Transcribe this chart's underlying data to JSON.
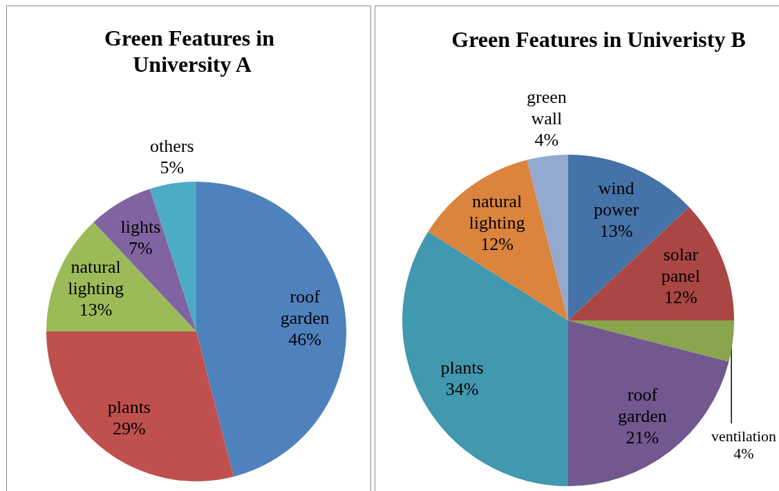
{
  "chart_data": [
    {
      "type": "pie",
      "title": "Green Features in University A",
      "categories": [
        "roof garden",
        "plants",
        "natural lighting",
        "lights",
        "others"
      ],
      "values": [
        46,
        29,
        13,
        7,
        5
      ],
      "value_labels": [
        "46%",
        "29%",
        "13%",
        "7%",
        "5%"
      ],
      "colors": [
        "#4f81bd",
        "#c0504d",
        "#9bbb59",
        "#8064a2",
        "#4bacc6"
      ]
    },
    {
      "type": "pie",
      "title": "Green Features in Univeristy B",
      "categories": [
        "wind power",
        "solar panel",
        "ventilation",
        "roof garden",
        "plants",
        "natural lighting",
        "green wall"
      ],
      "values": [
        13,
        12,
        4,
        21,
        34,
        12,
        4
      ],
      "value_labels": [
        "13%",
        "12%",
        "4%",
        "21%",
        "34%",
        "12%",
        "4%"
      ],
      "colors": [
        "#4572a7",
        "#aa4643",
        "#89a54e",
        "#71588f",
        "#4198af",
        "#db843d",
        "#93a9cf"
      ]
    }
  ]
}
